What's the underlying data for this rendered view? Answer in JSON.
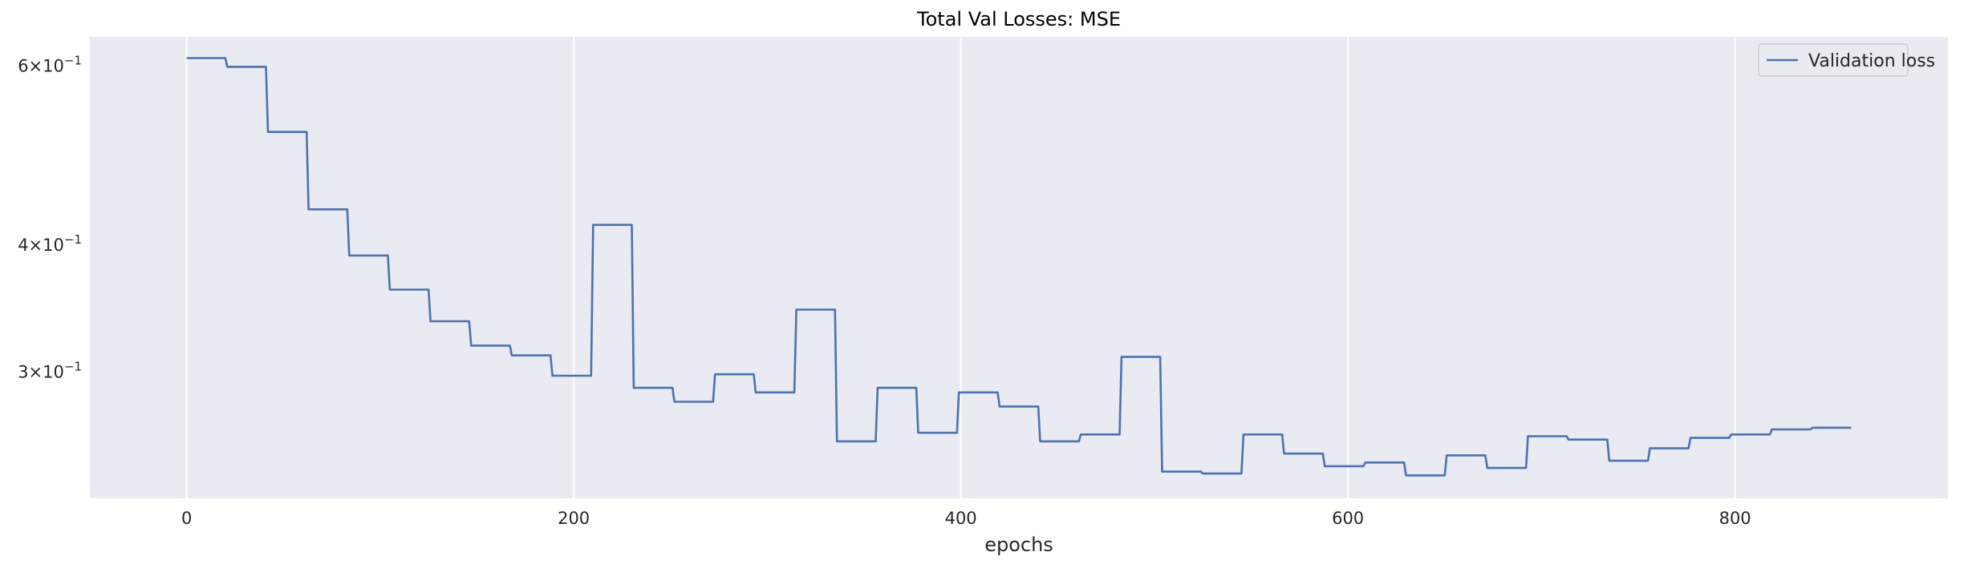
{
  "chart_data": {
    "type": "line",
    "title": "Total Val Losses:  MSE",
    "xlabel": "epochs",
    "ylabel": "",
    "xlim": [
      -50,
      910
    ],
    "ylim": [
      0.225,
      0.64
    ],
    "yscale": "log",
    "grid": "vertical",
    "background": "#eaeaf2",
    "legend_placement": "top-right",
    "x_ticks": [
      {
        "value": 0,
        "label": "0"
      },
      {
        "value": 200,
        "label": "200"
      },
      {
        "value": 400,
        "label": "400"
      },
      {
        "value": 600,
        "label": "600"
      },
      {
        "value": 800,
        "label": "800"
      }
    ],
    "y_ticks": [
      {
        "value": 0.6,
        "base": "6",
        "exp": "−1"
      },
      {
        "value": 0.4,
        "base": "4",
        "exp": "−1"
      },
      {
        "value": 0.3,
        "base": "3",
        "exp": "−1"
      }
    ],
    "series": [
      {
        "name": "Validation loss",
        "color": "#4c72b0",
        "x": [
          0,
          20,
          21,
          41,
          42,
          62,
          63,
          83,
          84,
          104,
          105,
          125,
          126,
          146,
          147,
          167,
          168,
          188,
          189,
          209,
          210,
          230,
          231,
          251,
          252,
          272,
          273,
          293,
          294,
          314,
          315,
          335,
          336,
          356,
          357,
          377,
          378,
          398,
          399,
          419,
          420,
          440,
          441,
          461,
          462,
          482,
          483,
          503,
          504,
          524,
          525,
          545,
          546,
          566,
          567,
          587,
          588,
          608,
          609,
          629,
          630,
          650,
          651,
          671,
          672,
          692,
          693,
          713,
          714,
          734,
          735,
          755,
          756,
          776,
          777,
          797,
          798,
          818,
          819,
          839,
          840,
          860
        ],
        "y": [
          0.61,
          0.61,
          0.598,
          0.598,
          0.516,
          0.516,
          0.433,
          0.433,
          0.39,
          0.39,
          0.361,
          0.361,
          0.336,
          0.336,
          0.318,
          0.318,
          0.311,
          0.311,
          0.297,
          0.297,
          0.418,
          0.418,
          0.289,
          0.289,
          0.28,
          0.28,
          0.298,
          0.298,
          0.286,
          0.286,
          0.345,
          0.345,
          0.256,
          0.256,
          0.289,
          0.289,
          0.261,
          0.261,
          0.286,
          0.286,
          0.277,
          0.277,
          0.256,
          0.256,
          0.26,
          0.26,
          0.31,
          0.31,
          0.239,
          0.239,
          0.238,
          0.238,
          0.26,
          0.26,
          0.249,
          0.249,
          0.242,
          0.242,
          0.244,
          0.244,
          0.237,
          0.237,
          0.248,
          0.248,
          0.241,
          0.241,
          0.259,
          0.259,
          0.257,
          0.257,
          0.245,
          0.245,
          0.252,
          0.252,
          0.258,
          0.258,
          0.26,
          0.26,
          0.263,
          0.263,
          0.264,
          0.264
        ]
      }
    ]
  }
}
